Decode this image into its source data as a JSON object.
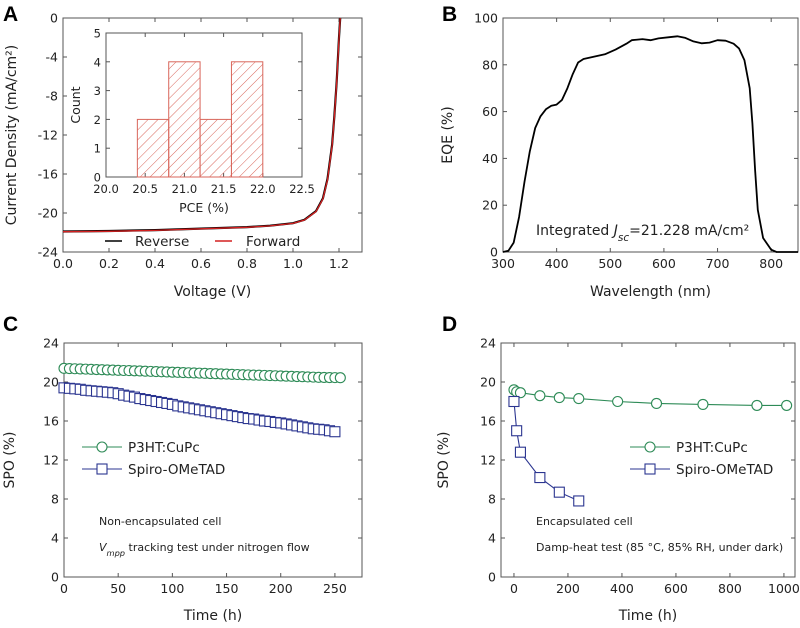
{
  "chart_data": [
    {
      "panel": "A",
      "type": "line",
      "xlabel": "Voltage (V)",
      "ylabel": "Current Density (mA/cm²)",
      "xlim": [
        0,
        1.3
      ],
      "ylim": [
        -24,
        0
      ],
      "xticks": [
        "0.0",
        "0.2",
        "0.4",
        "0.6",
        "0.8",
        "1.0",
        "1.2"
      ],
      "yticks": [
        "-24",
        "-20",
        "-16",
        "-12",
        "-8",
        "-4",
        "0"
      ],
      "legend": "bottom-center",
      "series": [
        {
          "name": "Reverse",
          "color": "#000000",
          "x": [
            0,
            0.2,
            0.4,
            0.6,
            0.8,
            0.9,
            1.0,
            1.05,
            1.1,
            1.13,
            1.15,
            1.17,
            1.18,
            1.19,
            1.2,
            1.205
          ],
          "y": [
            -21.9,
            -21.85,
            -21.75,
            -21.6,
            -21.45,
            -21.3,
            -21.05,
            -20.7,
            -19.8,
            -18.5,
            -16.5,
            -13,
            -10,
            -6.5,
            -2,
            0
          ]
        },
        {
          "name": "Forward",
          "color": "#d42020",
          "x": [
            0,
            0.2,
            0.4,
            0.6,
            0.8,
            0.9,
            1.0,
            1.05,
            1.1,
            1.13,
            1.15,
            1.17,
            1.18,
            1.19,
            1.2,
            1.205
          ],
          "y": [
            -21.92,
            -21.88,
            -21.78,
            -21.62,
            -21.47,
            -21.32,
            -21.07,
            -20.72,
            -19.85,
            -18.55,
            -16.6,
            -13.1,
            -10.1,
            -6.6,
            -2.1,
            0
          ]
        }
      ],
      "inset": {
        "type": "bar",
        "xlabel": "PCE (%)",
        "ylabel": "Count",
        "xlim": [
          20,
          22.5
        ],
        "ylim": [
          0,
          5
        ],
        "xticks": [
          "20.0",
          "20.5",
          "21.0",
          "21.5",
          "22.0",
          "22.5"
        ],
        "yticks": [
          "0",
          "1",
          "2",
          "3",
          "4",
          "5"
        ],
        "color": "#d9665b",
        "bins": [
          [
            20.4,
            20.8
          ],
          [
            20.8,
            21.2
          ],
          [
            21.2,
            21.6
          ],
          [
            21.6,
            22.0
          ]
        ],
        "values": [
          2,
          4,
          2,
          4
        ]
      }
    },
    {
      "panel": "B",
      "type": "line",
      "xlabel": "Wavelength (nm)",
      "ylabel": "EQE (%)",
      "xlim": [
        300,
        850
      ],
      "ylim": [
        0,
        100
      ],
      "xticks": [
        "300",
        "400",
        "500",
        "600",
        "700",
        "800"
      ],
      "yticks": [
        "0",
        "20",
        "40",
        "60",
        "80",
        "100"
      ],
      "annotation": {
        "prefix": "Integrated ",
        "var": "J",
        "sub": "sc",
        "suffix": "=21.228 mA/cm²"
      },
      "series": [
        {
          "name": "EQE",
          "color": "#000000",
          "x": [
            300,
            310,
            320,
            330,
            340,
            350,
            360,
            370,
            380,
            390,
            400,
            410,
            420,
            430,
            440,
            450,
            470,
            490,
            510,
            530,
            540,
            560,
            575,
            590,
            610,
            625,
            640,
            655,
            670,
            685,
            700,
            715,
            730,
            740,
            750,
            760,
            765,
            770,
            775,
            785,
            800,
            810,
            850
          ],
          "y": [
            0,
            0.5,
            4,
            15,
            30,
            43,
            53,
            58,
            61,
            62.5,
            63,
            65,
            70,
            76,
            81,
            82.5,
            83.5,
            84.5,
            86.5,
            89,
            90.5,
            91,
            90.5,
            91.3,
            91.8,
            92.2,
            91.5,
            90,
            89.2,
            89.5,
            90.5,
            90.3,
            89,
            87,
            82,
            70,
            55,
            35,
            18,
            6,
            1,
            0,
            0
          ]
        }
      ]
    },
    {
      "panel": "C",
      "type": "scatter",
      "xlabel": "Time (h)",
      "ylabel": "SPO (%)",
      "xlim": [
        0,
        275
      ],
      "ylim": [
        0,
        24
      ],
      "xticks": [
        "0",
        "50",
        "100",
        "150",
        "200",
        "250"
      ],
      "yticks": [
        "0",
        "4",
        "8",
        "12",
        "16",
        "20",
        "24"
      ],
      "legend": "center-left",
      "notes": [
        "Non-encapsulated cell"
      ],
      "note2": {
        "var": "V",
        "sub": "mpp",
        "suffix": " tracking test under nitrogen flow"
      },
      "series": [
        {
          "name": "P3HT:CuPc",
          "color": "#2e8b57",
          "marker": "circle",
          "x_step": 5,
          "y": [
            21.4,
            21.38,
            21.36,
            21.34,
            21.32,
            21.3,
            21.28,
            21.26,
            21.24,
            21.22,
            21.2,
            21.18,
            21.17,
            21.15,
            21.13,
            21.11,
            21.09,
            21.07,
            21.05,
            21.03,
            21.01,
            20.99,
            20.97,
            20.95,
            20.93,
            20.91,
            20.89,
            20.87,
            20.85,
            20.83,
            20.81,
            20.79,
            20.77,
            20.75,
            20.73,
            20.71,
            20.7,
            20.68,
            20.66,
            20.64,
            20.62,
            20.6,
            20.58,
            20.56,
            20.54,
            20.52,
            20.5,
            20.48,
            20.47,
            20.46,
            20.45,
            20.44
          ]
        },
        {
          "name": "Spiro-OMeTAD",
          "color": "#2b3590",
          "marker": "square",
          "x_step": 5,
          "y": [
            19.4,
            19.35,
            19.3,
            19.25,
            19.15,
            19.1,
            19.05,
            19.0,
            18.95,
            18.9,
            18.8,
            18.65,
            18.55,
            18.45,
            18.3,
            18.2,
            18.1,
            18.0,
            17.9,
            17.8,
            17.7,
            17.55,
            17.45,
            17.35,
            17.25,
            17.15,
            17.05,
            16.95,
            16.85,
            16.75,
            16.65,
            16.55,
            16.45,
            16.35,
            16.25,
            16.2,
            16.1,
            16.0,
            15.95,
            15.85,
            15.8,
            15.7,
            15.6,
            15.5,
            15.4,
            15.3,
            15.2,
            15.15,
            15.1,
            15.0,
            14.9
          ]
        }
      ]
    },
    {
      "panel": "D",
      "type": "line",
      "xlabel": "Time (h)",
      "ylabel": "SPO (%)",
      "xlim": [
        -48,
        1041
      ],
      "ylim": [
        0,
        24
      ],
      "xticks": [
        "0",
        "200",
        "400",
        "600",
        "800",
        "1000"
      ],
      "yticks": [
        "0",
        "4",
        "8",
        "12",
        "16",
        "20",
        "24"
      ],
      "legend": "center-right",
      "notes": [
        "Encapsulated cell",
        "Damp-heat test (85 °C, 85% RH, under dark)"
      ],
      "series": [
        {
          "name": "P3HT:CuPc",
          "color": "#2e8b57",
          "marker": "circle",
          "x": [
            0,
            10,
            24,
            96,
            168,
            240,
            384,
            528,
            700,
            900,
            1010
          ],
          "y": [
            19.2,
            19.0,
            18.9,
            18.6,
            18.4,
            18.3,
            18.0,
            17.8,
            17.7,
            17.6,
            17.6
          ]
        },
        {
          "name": "Spiro-OMeTAD",
          "color": "#2b3590",
          "marker": "square",
          "x": [
            0,
            10,
            24,
            96,
            168,
            240
          ],
          "y": [
            18.0,
            15.0,
            12.8,
            10.2,
            8.7,
            7.8
          ]
        }
      ]
    }
  ],
  "panel_letters": [
    "A",
    "B",
    "C",
    "D"
  ]
}
